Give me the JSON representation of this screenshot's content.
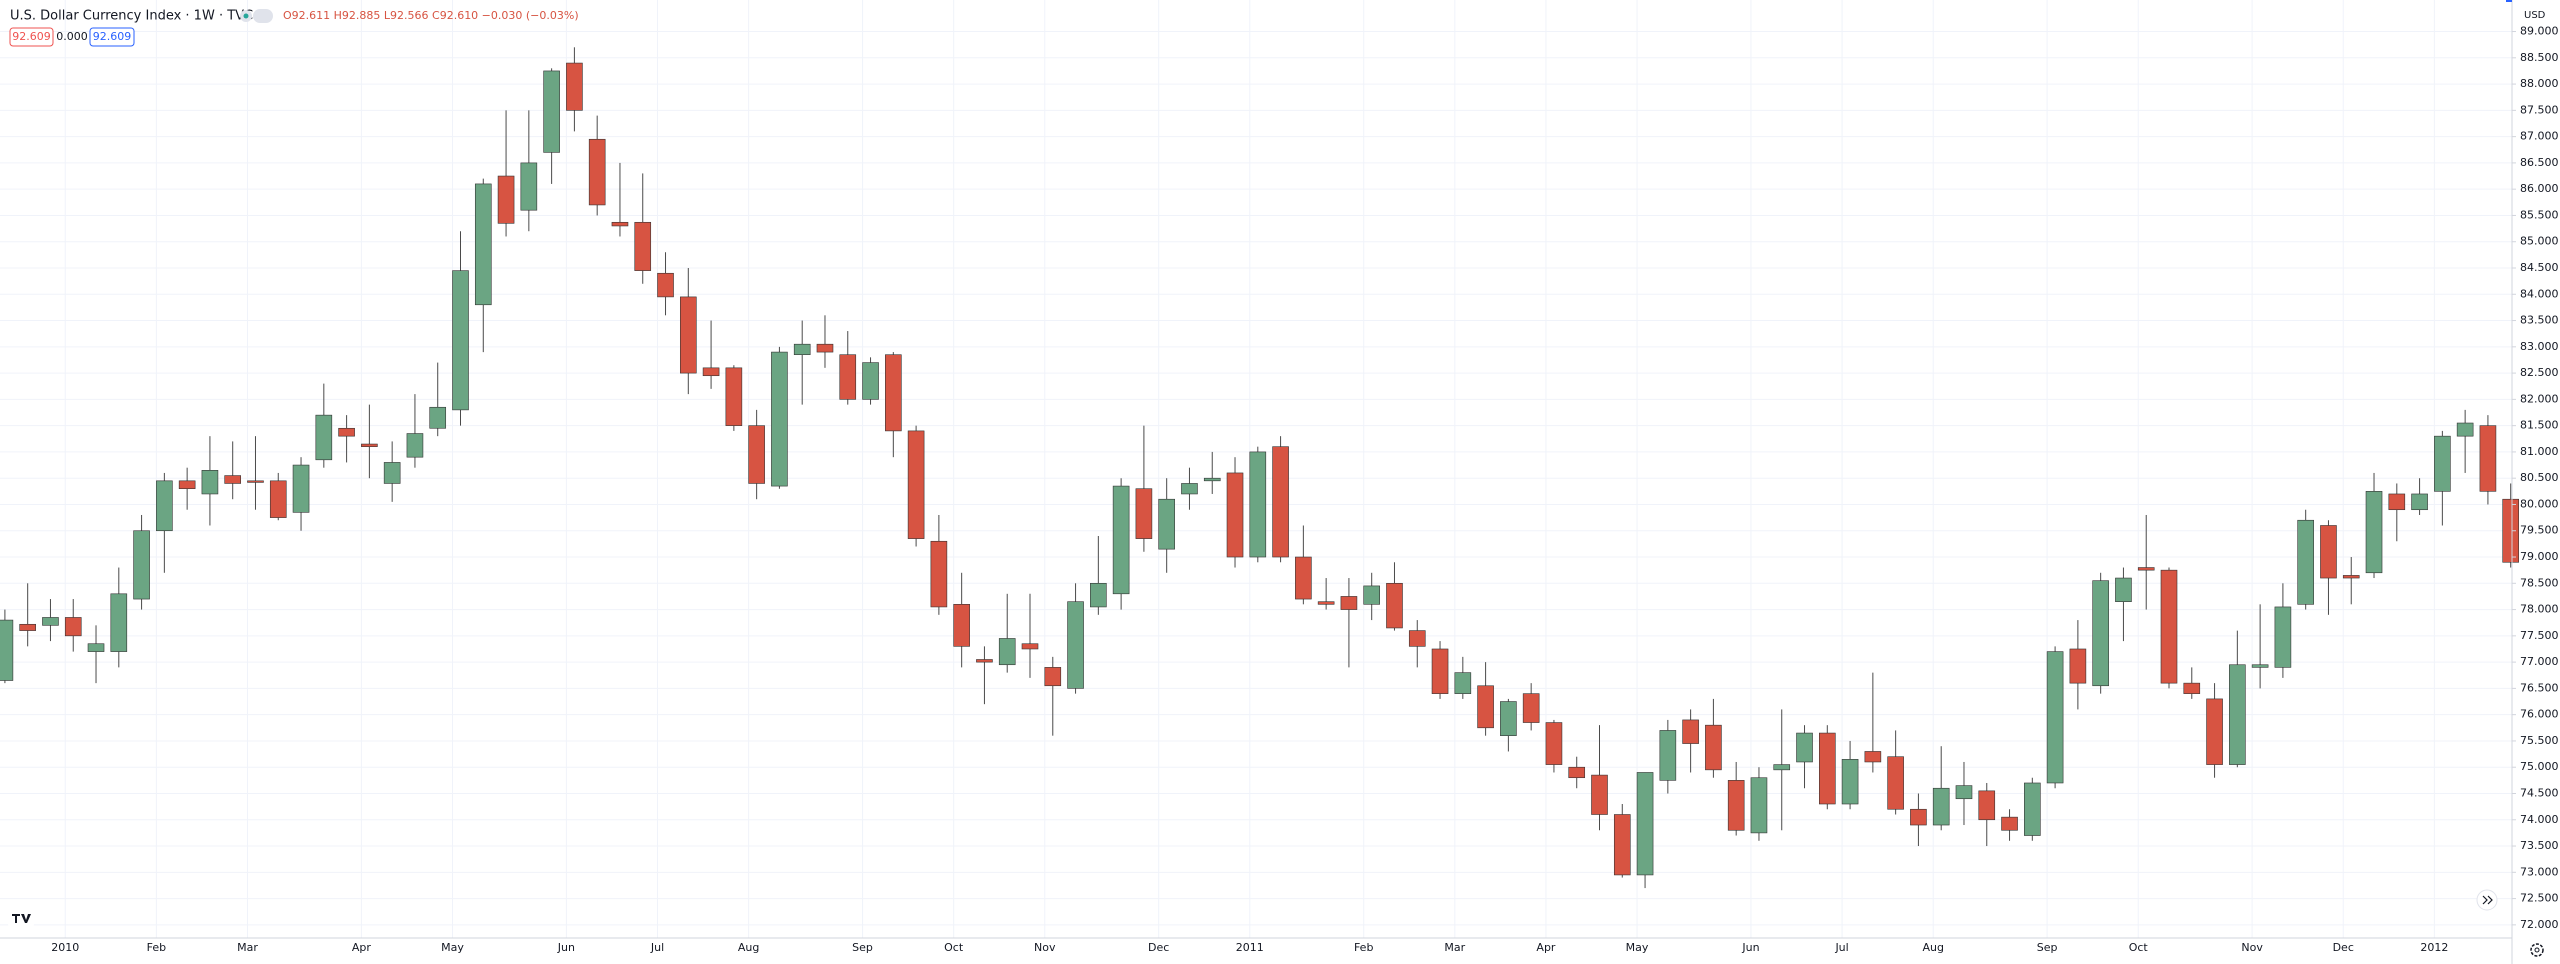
{
  "header": {
    "title": "U.S. Dollar Currency Index · 1W · TVC",
    "ohlc": "O92.611 H92.885 L92.566 C92.610 −0.030 (−0.03%)",
    "sell": "92.609",
    "spread": "0.000",
    "buy": "92.609",
    "currency": "USD"
  },
  "chart_data": {
    "type": "candlestick",
    "up_color": "#6ba583",
    "down_color": "#d75442",
    "grid": true,
    "categories": [
      null,
      null,
      null,
      "2010",
      null,
      null,
      null,
      "Feb",
      null,
      null,
      null,
      "Mar",
      null,
      null,
      null,
      null,
      "Apr",
      null,
      null,
      null,
      "May",
      null,
      null,
      null,
      null,
      "Jun",
      null,
      null,
      null,
      "Jul",
      null,
      null,
      null,
      "Aug",
      null,
      null,
      null,
      null,
      "Sep",
      null,
      null,
      null,
      "Oct",
      null,
      null,
      null,
      "Nov",
      null,
      null,
      null,
      null,
      "Dec",
      null,
      null,
      null,
      "2011",
      null,
      null,
      null,
      null,
      "Feb",
      null,
      null,
      null,
      "Mar",
      null,
      null,
      null,
      "Apr",
      null,
      null,
      null,
      "May",
      null,
      null,
      null,
      null,
      "Jun",
      null,
      null,
      null,
      "Jul",
      null,
      null,
      null,
      "Aug",
      null,
      null,
      null,
      null,
      "Sep",
      null,
      null,
      null,
      "Oct",
      null,
      null,
      null,
      null,
      "Nov",
      null,
      null,
      null,
      "Dec",
      null,
      null,
      null,
      "2012",
      null,
      null,
      null
    ],
    "open": [
      76.65,
      77.72,
      77.7,
      77.85,
      77.2,
      77.2,
      78.2,
      79.5,
      80.45,
      80.2,
      80.55,
      80.45,
      80.45,
      79.85,
      80.85,
      81.45,
      81.15,
      80.4,
      80.9,
      81.45,
      81.8,
      83.8,
      86.25,
      85.6,
      86.7,
      88.4,
      86.95,
      85.37,
      85.37,
      84.4,
      83.95,
      82.6,
      82.6,
      81.5,
      80.35,
      82.85,
      83.05,
      82.85,
      82.0,
      82.85,
      81.4,
      79.3,
      78.1,
      77.05,
      76.95,
      77.35,
      76.9,
      76.5,
      78.05,
      78.3,
      80.3,
      79.15,
      80.2,
      80.45,
      80.6,
      79.0,
      81.1,
      79.0,
      78.15,
      78.25,
      78.1,
      78.5,
      77.6,
      77.25,
      76.4,
      76.55,
      75.6,
      76.4,
      75.85,
      75.0,
      74.85,
      74.1,
      72.95,
      74.75,
      75.9,
      75.8,
      74.75,
      73.75,
      74.95,
      75.1,
      75.65,
      74.3,
      75.3,
      75.2,
      74.2,
      73.9,
      74.4,
      74.55,
      74.05,
      73.7,
      74.7,
      77.25,
      76.55,
      78.15,
      78.8,
      78.75,
      76.6,
      76.3,
      75.05,
      76.9,
      76.9,
      78.1,
      79.6,
      78.65,
      78.7,
      80.2,
      79.9,
      80.25,
      81.3,
      81.5,
      80.1
    ],
    "high": [
      78.0,
      78.5,
      78.2,
      78.2,
      77.7,
      78.8,
      79.8,
      80.6,
      80.7,
      81.3,
      81.2,
      81.3,
      80.6,
      80.9,
      82.3,
      81.7,
      81.9,
      81.2,
      82.1,
      82.7,
      85.2,
      86.2,
      87.5,
      87.5,
      88.3,
      88.7,
      87.4,
      86.5,
      86.3,
      84.8,
      84.5,
      83.5,
      82.65,
      81.8,
      83.0,
      83.5,
      83.6,
      83.3,
      82.8,
      82.9,
      81.5,
      79.8,
      78.7,
      77.3,
      78.3,
      78.3,
      77.1,
      78.5,
      79.4,
      80.5,
      81.5,
      80.5,
      80.7,
      81.0,
      80.9,
      81.1,
      81.3,
      79.6,
      78.6,
      78.6,
      78.7,
      78.9,
      77.8,
      77.4,
      77.1,
      77.0,
      76.3,
      76.6,
      75.9,
      75.2,
      75.8,
      74.3,
      74.9,
      75.9,
      76.1,
      76.3,
      75.1,
      75.0,
      76.1,
      75.8,
      75.8,
      75.5,
      76.8,
      75.7,
      74.5,
      75.4,
      75.1,
      74.7,
      74.2,
      74.8,
      77.3,
      77.8,
      78.7,
      78.8,
      79.8,
      78.8,
      76.9,
      76.6,
      77.6,
      78.1,
      78.5,
      79.9,
      79.7,
      79.0,
      80.6,
      80.4,
      80.5,
      81.4,
      81.8,
      81.7,
      80.4
    ],
    "low": [
      76.6,
      77.3,
      77.4,
      77.2,
      76.6,
      76.9,
      78.0,
      78.7,
      79.9,
      79.6,
      80.1,
      79.9,
      79.7,
      79.5,
      80.7,
      80.8,
      80.5,
      80.05,
      80.7,
      81.3,
      81.5,
      82.9,
      85.1,
      85.2,
      86.1,
      87.1,
      85.5,
      85.1,
      84.2,
      83.6,
      82.1,
      82.2,
      81.4,
      80.1,
      80.3,
      81.9,
      82.6,
      81.9,
      81.9,
      80.9,
      79.2,
      77.9,
      76.9,
      76.2,
      76.8,
      76.7,
      75.6,
      76.4,
      77.9,
      78.0,
      79.1,
      78.7,
      79.9,
      80.2,
      78.8,
      78.9,
      78.9,
      78.1,
      78.0,
      76.9,
      77.8,
      77.6,
      76.9,
      76.3,
      76.3,
      75.6,
      75.3,
      75.7,
      74.9,
      74.6,
      73.8,
      72.9,
      72.7,
      74.5,
      74.9,
      74.8,
      73.7,
      73.6,
      73.8,
      74.6,
      74.2,
      74.2,
      74.9,
      74.1,
      73.5,
      73.8,
      73.9,
      73.5,
      73.6,
      73.6,
      74.6,
      76.1,
      76.4,
      77.4,
      78.0,
      76.5,
      76.3,
      74.8,
      75.0,
      76.5,
      76.7,
      78.0,
      77.9,
      78.1,
      78.6,
      79.3,
      79.8,
      79.6,
      80.6,
      80.0,
      78.8
    ],
    "close": [
      77.8,
      77.6,
      77.85,
      77.5,
      77.35,
      78.3,
      79.5,
      80.45,
      80.3,
      80.65,
      80.4,
      80.42,
      79.75,
      80.75,
      81.7,
      81.3,
      81.1,
      80.8,
      81.35,
      81.85,
      84.45,
      86.1,
      85.35,
      86.5,
      88.25,
      87.5,
      85.7,
      85.3,
      84.45,
      83.95,
      82.5,
      82.45,
      81.5,
      80.4,
      82.9,
      83.05,
      82.9,
      82.0,
      82.7,
      81.4,
      79.35,
      78.05,
      77.3,
      77.0,
      77.45,
      77.25,
      76.55,
      78.15,
      78.5,
      80.35,
      79.35,
      80.1,
      80.4,
      80.5,
      79.0,
      81.0,
      79.0,
      78.2,
      78.1,
      78.0,
      78.45,
      77.65,
      77.3,
      76.4,
      76.8,
      75.75,
      76.25,
      75.85,
      75.05,
      74.8,
      74.1,
      72.95,
      74.9,
      75.7,
      75.45,
      74.95,
      73.8,
      74.8,
      75.05,
      75.65,
      74.3,
      75.15,
      75.1,
      74.2,
      73.9,
      74.6,
      74.65,
      74.0,
      73.8,
      74.7,
      77.2,
      76.6,
      78.55,
      78.6,
      78.75,
      76.6,
      76.4,
      75.05,
      76.95,
      76.95,
      78.05,
      79.7,
      78.6,
      78.6,
      80.25,
      79.9,
      80.2,
      81.3,
      81.55,
      80.25,
      78.9
    ],
    "ylim": [
      71.75,
      89.6
    ],
    "yticks": [
      {
        "value": 72,
        "label": "72.000"
      },
      {
        "value": 72.5,
        "label": "72.500"
      },
      {
        "value": 73,
        "label": "73.000"
      },
      {
        "value": 73.5,
        "label": "73.500"
      },
      {
        "value": 74,
        "label": "74.000"
      },
      {
        "value": 74.5,
        "label": "74.500"
      },
      {
        "value": 75,
        "label": "75.000"
      },
      {
        "value": 75.5,
        "label": "75.500"
      },
      {
        "value": 76,
        "label": "76.000"
      },
      {
        "value": 76.5,
        "label": "76.500"
      },
      {
        "value": 77,
        "label": "77.000"
      },
      {
        "value": 77.5,
        "label": "77.500"
      },
      {
        "value": 78,
        "label": "78.000"
      },
      {
        "value": 78.5,
        "label": "78.500"
      },
      {
        "value": 79,
        "label": "79.000"
      },
      {
        "value": 79.5,
        "label": "79.500"
      },
      {
        "value": 80,
        "label": "80.000"
      },
      {
        "value": 80.5,
        "label": "80.500"
      },
      {
        "value": 81,
        "label": "81.000"
      },
      {
        "value": 81.5,
        "label": "81.500"
      },
      {
        "value": 82,
        "label": "82.000"
      },
      {
        "value": 82.5,
        "label": "82.500"
      },
      {
        "value": 83,
        "label": "83.000"
      },
      {
        "value": 83.5,
        "label": "83.500"
      },
      {
        "value": 84,
        "label": "84.000"
      },
      {
        "value": 84.5,
        "label": "84.500"
      },
      {
        "value": 85,
        "label": "85.000"
      },
      {
        "value": 85.5,
        "label": "85.500"
      },
      {
        "value": 86,
        "label": "86.000"
      },
      {
        "value": 86.5,
        "label": "86.500"
      },
      {
        "value": 87,
        "label": "87.000"
      },
      {
        "value": 87.5,
        "label": "87.500"
      },
      {
        "value": 88,
        "label": "88.000"
      },
      {
        "value": 88.5,
        "label": "88.500"
      },
      {
        "value": 89,
        "label": "89.000"
      }
    ]
  }
}
